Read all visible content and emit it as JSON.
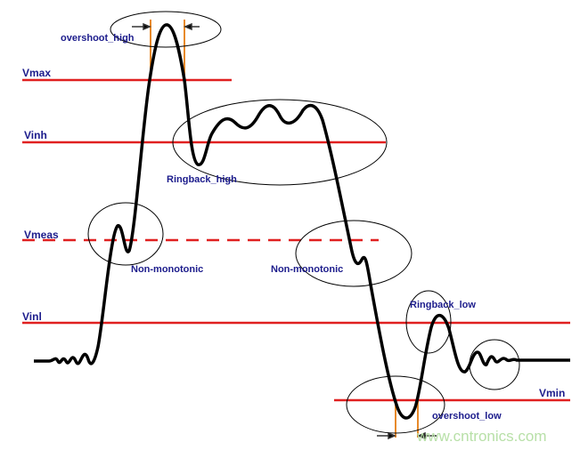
{
  "levels": {
    "vmax": "Vmax",
    "vinh": "Vinh",
    "vmeas": "Vmeas",
    "vinl": "Vinl",
    "vmin": "Vmin"
  },
  "annotations": {
    "overshoot_high": "overshoot_high",
    "ringback_high": "Ringback_high",
    "non_monotonic_rise": "Non-monotonic",
    "non_monotonic_fall": "Non-monotonic",
    "ringback_low": "Ringback_low",
    "overshoot_low": "overshoot_low"
  },
  "watermark": "www.cntronics.com",
  "colors": {
    "level_line": "#e02020",
    "waveform": "#000000",
    "label": "#1c1c8c",
    "marker": "#e88a2a",
    "watermark": "#b8e0a8"
  }
}
